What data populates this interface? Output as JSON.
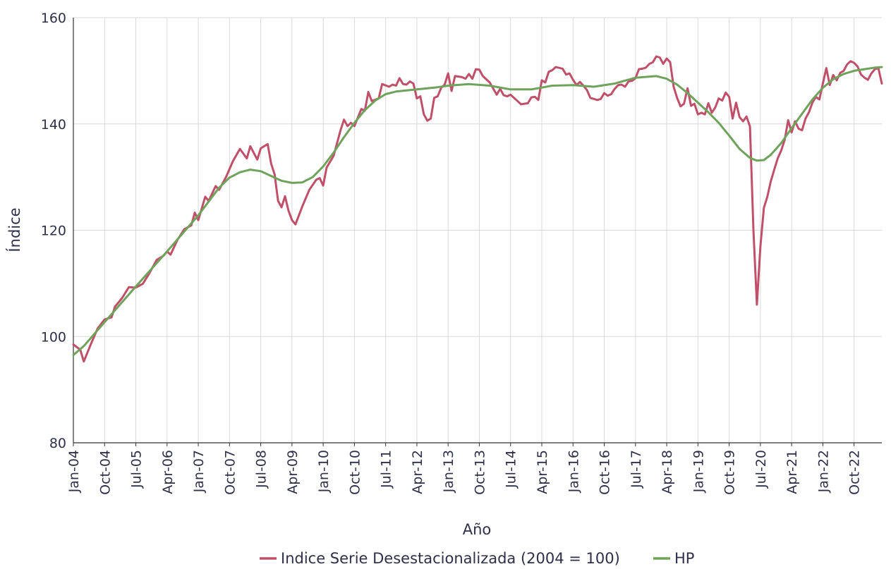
{
  "chart_data": {
    "type": "line",
    "title": "",
    "xlabel": "Año",
    "ylabel": "Índice",
    "ylim": [
      80,
      160
    ],
    "yticks": [
      80,
      100,
      120,
      140,
      160
    ],
    "xticks": [
      "Jan-04",
      "Oct-04",
      "Jul-05",
      "Apr-06",
      "Jan-07",
      "Oct-07",
      "Jul-08",
      "Apr-09",
      "Jan-10",
      "Oct-10",
      "Jul-11",
      "Apr-12",
      "Jan-13",
      "Oct-13",
      "Jul-14",
      "Apr-15",
      "Jan-16",
      "Oct-16",
      "Jul-17",
      "Apr-18",
      "Jan-19",
      "Oct-19",
      "Jul-20",
      "Apr-21",
      "Jan-22",
      "Oct-22"
    ],
    "x_start": "Jan-04",
    "x_end": "Jun-23",
    "grid": true,
    "legend_position": "bottom-center",
    "series": [
      {
        "name": "Indice Serie Desestacionalizada (2004 = 100)",
        "color": "#c0506a",
        "anchors": [
          [
            "Jan-04",
            98.5
          ],
          [
            "Mar-04",
            97.5
          ],
          [
            "Apr-04",
            95.3
          ],
          [
            "Jun-04",
            98.5
          ],
          [
            "Aug-04",
            101.5
          ],
          [
            "Oct-04",
            103.2
          ],
          [
            "Dec-04",
            103.6
          ],
          [
            "Jan-05",
            105.6
          ],
          [
            "Mar-05",
            107.2
          ],
          [
            "May-05",
            109.3
          ],
          [
            "Jul-05",
            109.2
          ],
          [
            "Sep-05",
            109.9
          ],
          [
            "Nov-05",
            112.0
          ],
          [
            "Jan-06",
            114.4
          ],
          [
            "Mar-06",
            115.2
          ],
          [
            "Apr-06",
            116.0
          ],
          [
            "May-06",
            115.4
          ],
          [
            "Jul-06",
            118.2
          ],
          [
            "Sep-06",
            120.2
          ],
          [
            "Nov-06",
            120.9
          ],
          [
            "Dec-06",
            123.3
          ],
          [
            "Jan-07",
            121.9
          ],
          [
            "Mar-07",
            126.3
          ],
          [
            "Apr-07",
            125.5
          ],
          [
            "Jun-07",
            128.3
          ],
          [
            "Jul-07",
            127.6
          ],
          [
            "Sep-07",
            130.0
          ],
          [
            "Nov-07",
            133.0
          ],
          [
            "Jan-08",
            135.3
          ],
          [
            "Mar-08",
            133.5
          ],
          [
            "Apr-08",
            135.8
          ],
          [
            "Jun-08",
            133.3
          ],
          [
            "Jul-08",
            135.4
          ],
          [
            "Sep-08",
            136.2
          ],
          [
            "Oct-08",
            132.5
          ],
          [
            "Nov-08",
            130.5
          ],
          [
            "Dec-08",
            125.5
          ],
          [
            "Jan-09",
            124.3
          ],
          [
            "Feb-09",
            126.4
          ],
          [
            "Mar-09",
            123.7
          ],
          [
            "Apr-09",
            121.9
          ],
          [
            "May-09",
            121.1
          ],
          [
            "Jul-09",
            124.5
          ],
          [
            "Sep-09",
            127.6
          ],
          [
            "Nov-09",
            129.5
          ],
          [
            "Dec-09",
            129.8
          ],
          [
            "Jan-10",
            128.4
          ],
          [
            "Feb-10",
            131.8
          ],
          [
            "Apr-10",
            134.0
          ],
          [
            "Jun-10",
            138.8
          ],
          [
            "Jul-10",
            140.8
          ],
          [
            "Aug-10",
            139.6
          ],
          [
            "Sep-10",
            140.2
          ],
          [
            "Oct-10",
            139.6
          ],
          [
            "Dec-10",
            142.8
          ],
          [
            "Jan-11",
            142.5
          ],
          [
            "Feb-11",
            146.0
          ],
          [
            "Mar-11",
            144.3
          ],
          [
            "May-11",
            144.8
          ],
          [
            "Jun-11",
            147.5
          ],
          [
            "Aug-11",
            147.0
          ],
          [
            "Sep-11",
            147.4
          ],
          [
            "Oct-11",
            147.2
          ],
          [
            "Nov-11",
            148.6
          ],
          [
            "Dec-11",
            147.5
          ],
          [
            "Jan-12",
            147.4
          ],
          [
            "Feb-12",
            148.0
          ],
          [
            "Mar-12",
            147.6
          ],
          [
            "Apr-12",
            144.8
          ],
          [
            "May-12",
            145.2
          ],
          [
            "Jun-12",
            141.8
          ],
          [
            "Jul-12",
            140.6
          ],
          [
            "Aug-12",
            141.0
          ],
          [
            "Sep-12",
            144.9
          ],
          [
            "Oct-12",
            145.2
          ],
          [
            "Nov-12",
            146.8
          ],
          [
            "Dec-12",
            147.4
          ],
          [
            "Jan-13",
            149.5
          ],
          [
            "Feb-13",
            146.2
          ],
          [
            "Mar-13",
            149.0
          ],
          [
            "May-13",
            148.8
          ],
          [
            "Jun-13",
            148.5
          ],
          [
            "Jul-13",
            149.4
          ],
          [
            "Aug-13",
            148.5
          ],
          [
            "Sep-13",
            150.3
          ],
          [
            "Oct-13",
            150.2
          ],
          [
            "Nov-13",
            149.0
          ],
          [
            "Jan-14",
            147.8
          ],
          [
            "Mar-14",
            145.5
          ],
          [
            "Apr-14",
            146.6
          ],
          [
            "May-14",
            145.4
          ],
          [
            "Jun-14",
            145.2
          ],
          [
            "Jul-14",
            145.5
          ],
          [
            "Sep-14",
            144.3
          ],
          [
            "Oct-14",
            143.7
          ],
          [
            "Dec-14",
            143.9
          ],
          [
            "Jan-15",
            145.0
          ],
          [
            "Feb-15",
            145.1
          ],
          [
            "Mar-15",
            144.5
          ],
          [
            "Apr-15",
            148.2
          ],
          [
            "May-15",
            147.8
          ],
          [
            "Jun-15",
            149.8
          ],
          [
            "Jul-15",
            150.1
          ],
          [
            "Aug-15",
            150.7
          ],
          [
            "Oct-15",
            150.4
          ],
          [
            "Nov-15",
            149.3
          ],
          [
            "Dec-15",
            149.5
          ],
          [
            "Jan-16",
            148.3
          ],
          [
            "Feb-16",
            147.3
          ],
          [
            "Mar-16",
            147.9
          ],
          [
            "Apr-16",
            147.2
          ],
          [
            "May-16",
            146.4
          ],
          [
            "Jun-16",
            144.9
          ],
          [
            "Aug-16",
            144.5
          ],
          [
            "Sep-16",
            144.7
          ],
          [
            "Oct-16",
            145.8
          ],
          [
            "Nov-16",
            145.3
          ],
          [
            "Dec-16",
            145.6
          ],
          [
            "Jan-17",
            146.6
          ],
          [
            "Feb-17",
            147.3
          ],
          [
            "Mar-17",
            147.4
          ],
          [
            "Apr-17",
            147.0
          ],
          [
            "May-17",
            148.0
          ],
          [
            "Jun-17",
            148.1
          ],
          [
            "Jul-17",
            148.6
          ],
          [
            "Aug-17",
            150.3
          ],
          [
            "Sep-17",
            150.4
          ],
          [
            "Oct-17",
            150.6
          ],
          [
            "Nov-17",
            151.3
          ],
          [
            "Dec-17",
            151.6
          ],
          [
            "Jan-18",
            152.7
          ],
          [
            "Feb-18",
            152.5
          ],
          [
            "Mar-18",
            151.3
          ],
          [
            "Apr-18",
            152.3
          ],
          [
            "May-18",
            151.6
          ],
          [
            "Jun-18",
            147.0
          ],
          [
            "Jul-18",
            144.9
          ],
          [
            "Aug-18",
            143.3
          ],
          [
            "Sep-18",
            143.8
          ],
          [
            "Oct-18",
            146.7
          ],
          [
            "Nov-18",
            143.4
          ],
          [
            "Dec-18",
            143.8
          ],
          [
            "Jan-19",
            141.8
          ],
          [
            "Feb-19",
            142.1
          ],
          [
            "Mar-19",
            141.8
          ],
          [
            "Apr-19",
            143.9
          ],
          [
            "May-19",
            142.1
          ],
          [
            "Jun-19",
            143.1
          ],
          [
            "Jul-19",
            144.8
          ],
          [
            "Aug-19",
            144.4
          ],
          [
            "Sep-19",
            145.9
          ],
          [
            "Oct-19",
            145.1
          ],
          [
            "Nov-19",
            141.0
          ],
          [
            "Dec-19",
            144.0
          ],
          [
            "Jan-20",
            141.3
          ],
          [
            "Feb-20",
            140.5
          ],
          [
            "Mar-20",
            141.4
          ],
          [
            "Apr-20",
            139.5
          ],
          [
            "May-20",
            120.0
          ],
          [
            "Jun-20",
            106.0
          ],
          [
            "Jul-20",
            117.0
          ],
          [
            "Aug-20",
            124.2
          ],
          [
            "Sep-20",
            126.3
          ],
          [
            "Oct-20",
            129.2
          ],
          [
            "Nov-20",
            131.4
          ],
          [
            "Dec-20",
            133.5
          ],
          [
            "Jan-21",
            135.0
          ],
          [
            "Feb-21",
            137.0
          ],
          [
            "Mar-21",
            140.7
          ],
          [
            "Apr-21",
            138.4
          ],
          [
            "May-21",
            140.5
          ],
          [
            "Jun-21",
            139.1
          ],
          [
            "Jul-21",
            138.8
          ],
          [
            "Aug-21",
            141.0
          ],
          [
            "Sep-21",
            142.2
          ],
          [
            "Oct-21",
            144.0
          ],
          [
            "Nov-21",
            145.1
          ],
          [
            "Dec-21",
            144.6
          ],
          [
            "Jan-22",
            147.6
          ],
          [
            "Feb-22",
            150.5
          ],
          [
            "Mar-22",
            147.3
          ],
          [
            "Apr-22",
            149.2
          ],
          [
            "May-22",
            148.2
          ],
          [
            "Jun-22",
            149.6
          ],
          [
            "Jul-22",
            150.0
          ],
          [
            "Aug-22",
            151.2
          ],
          [
            "Sep-22",
            151.8
          ],
          [
            "Oct-22",
            151.5
          ],
          [
            "Nov-22",
            150.8
          ],
          [
            "Dec-22",
            149.3
          ],
          [
            "Jan-23",
            148.7
          ],
          [
            "Feb-23",
            148.3
          ],
          [
            "Mar-23",
            149.5
          ],
          [
            "Apr-23",
            150.3
          ],
          [
            "May-23",
            150.5
          ],
          [
            "Jun-23",
            147.6
          ]
        ]
      },
      {
        "name": "HP",
        "color": "#6fa35b",
        "anchors": [
          [
            "Jan-04",
            96.5
          ],
          [
            "Apr-04",
            98.2
          ],
          [
            "Oct-04",
            102.7
          ],
          [
            "Jul-05",
            109.4
          ],
          [
            "Apr-06",
            116.0
          ],
          [
            "Jan-07",
            122.8
          ],
          [
            "Jul-07",
            128.0
          ],
          [
            "Oct-07",
            129.9
          ],
          [
            "Jan-08",
            130.9
          ],
          [
            "Apr-08",
            131.4
          ],
          [
            "Jul-08",
            131.1
          ],
          [
            "Oct-08",
            130.2
          ],
          [
            "Jan-09",
            129.3
          ],
          [
            "Apr-09",
            128.9
          ],
          [
            "Jul-09",
            129.0
          ],
          [
            "Oct-09",
            130.0
          ],
          [
            "Jan-10",
            132.0
          ],
          [
            "Apr-10",
            134.6
          ],
          [
            "Jul-10",
            137.5
          ],
          [
            "Oct-10",
            140.2
          ],
          [
            "Jan-11",
            142.6
          ],
          [
            "Apr-11",
            144.4
          ],
          [
            "Jul-11",
            145.6
          ],
          [
            "Oct-11",
            146.1
          ],
          [
            "Jan-12",
            146.3
          ],
          [
            "Apr-12",
            146.5
          ],
          [
            "Oct-12",
            146.9
          ],
          [
            "Jan-13",
            147.2
          ],
          [
            "Jul-13",
            147.5
          ],
          [
            "Jan-14",
            147.2
          ],
          [
            "Jul-14",
            146.5
          ],
          [
            "Jan-15",
            146.5
          ],
          [
            "Jul-15",
            147.2
          ],
          [
            "Jan-16",
            147.3
          ],
          [
            "Jul-16",
            147.0
          ],
          [
            "Jan-17",
            147.6
          ],
          [
            "Jul-17",
            148.7
          ],
          [
            "Jan-18",
            149.0
          ],
          [
            "Apr-18",
            148.5
          ],
          [
            "Jul-18",
            147.4
          ],
          [
            "Oct-18",
            145.8
          ],
          [
            "Jan-19",
            144.0
          ],
          [
            "Apr-19",
            142.2
          ],
          [
            "Jul-19",
            140.2
          ],
          [
            "Oct-19",
            137.8
          ],
          [
            "Jan-20",
            135.3
          ],
          [
            "Apr-20",
            133.6
          ],
          [
            "Jun-20",
            133.1
          ],
          [
            "Aug-20",
            133.2
          ],
          [
            "Oct-20",
            134.2
          ],
          [
            "Jan-21",
            136.4
          ],
          [
            "Apr-21",
            139.2
          ],
          [
            "Jul-21",
            141.9
          ],
          [
            "Oct-21",
            144.6
          ],
          [
            "Jan-22",
            146.8
          ],
          [
            "Apr-22",
            148.4
          ],
          [
            "Jul-22",
            149.4
          ],
          [
            "Oct-22",
            150.0
          ],
          [
            "Jan-23",
            150.3
          ],
          [
            "Apr-23",
            150.6
          ],
          [
            "Jun-23",
            150.7
          ]
        ]
      }
    ]
  }
}
